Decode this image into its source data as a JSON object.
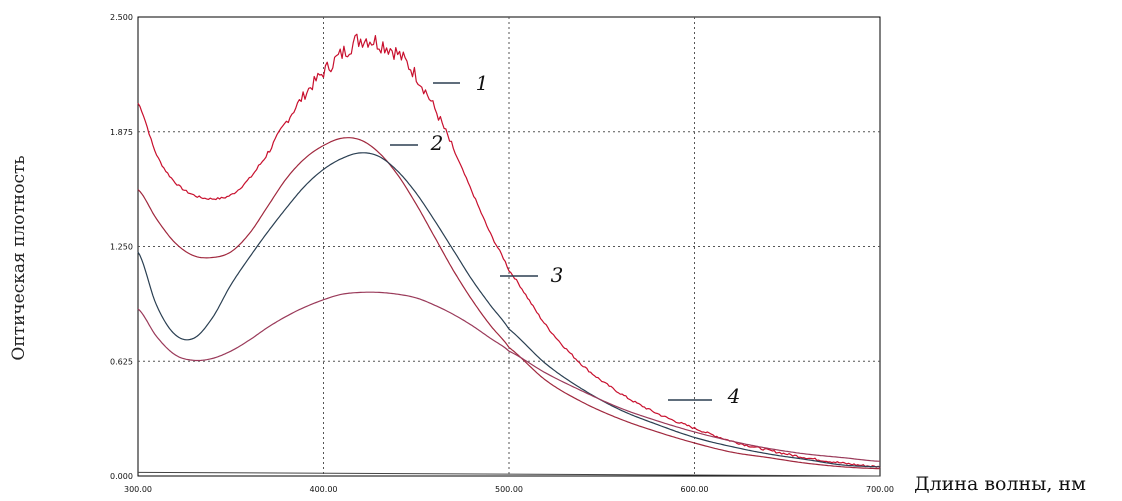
{
  "chart_data": {
    "type": "line",
    "xlabel": "Длина волны, нм",
    "ylabel": "Оптическая плотность",
    "xlim": [
      300,
      700
    ],
    "ylim": [
      0,
      2.5
    ],
    "grid": true,
    "grid_style": "dotted",
    "x_ticks": [
      300,
      400,
      500,
      600,
      700
    ],
    "y_ticks": [
      0,
      0.625,
      1.25,
      1.875,
      2.5
    ],
    "x_tick_labels": [
      "300.00",
      "400.00",
      "500.00",
      "600.00",
      "700.00"
    ],
    "y_tick_labels": [
      "0.000",
      "0.625",
      "1.250",
      "1.875",
      "2.500"
    ],
    "colors": {
      "axes": "#000000",
      "grid": "#555555",
      "curve_red": "#d0102a",
      "curve_dark": "#2c3e50",
      "curve_mixed": "#8b2a4a"
    },
    "series": [
      {
        "name": "1",
        "color": "#c8102e",
        "noise": true,
        "x": [
          300,
          310,
          320,
          330,
          340,
          350,
          360,
          370,
          380,
          390,
          400,
          410,
          420,
          430,
          440,
          450,
          460,
          470,
          480,
          490,
          500,
          520,
          540,
          560,
          580,
          600,
          620,
          640,
          660,
          680,
          700
        ],
        "y": [
          2.03,
          1.75,
          1.6,
          1.53,
          1.51,
          1.53,
          1.62,
          1.76,
          1.93,
          2.08,
          2.2,
          2.3,
          2.38,
          2.36,
          2.3,
          2.18,
          2.0,
          1.78,
          1.55,
          1.32,
          1.12,
          0.82,
          0.6,
          0.45,
          0.34,
          0.26,
          0.19,
          0.14,
          0.1,
          0.07,
          0.05
        ]
      },
      {
        "name": "2",
        "color": "#a0283e",
        "noise": false,
        "x": [
          300,
          310,
          320,
          330,
          340,
          350,
          360,
          370,
          380,
          390,
          400,
          410,
          420,
          430,
          440,
          450,
          460,
          470,
          480,
          490,
          500,
          520,
          540,
          560,
          580,
          600,
          620,
          640,
          660,
          680,
          700
        ],
        "y": [
          1.56,
          1.4,
          1.27,
          1.2,
          1.19,
          1.22,
          1.32,
          1.47,
          1.62,
          1.73,
          1.8,
          1.84,
          1.83,
          1.76,
          1.64,
          1.48,
          1.3,
          1.12,
          0.96,
          0.82,
          0.7,
          0.52,
          0.4,
          0.31,
          0.24,
          0.18,
          0.13,
          0.1,
          0.07,
          0.05,
          0.04
        ]
      },
      {
        "name": "3",
        "color": "#2a3f52",
        "noise": false,
        "x": [
          300,
          310,
          320,
          330,
          340,
          350,
          360,
          370,
          380,
          390,
          400,
          410,
          420,
          430,
          440,
          450,
          460,
          470,
          480,
          490,
          500,
          520,
          540,
          560,
          580,
          600,
          620,
          640,
          660,
          680,
          700
        ],
        "y": [
          1.22,
          0.93,
          0.77,
          0.75,
          0.86,
          1.04,
          1.19,
          1.33,
          1.46,
          1.58,
          1.67,
          1.73,
          1.76,
          1.74,
          1.66,
          1.54,
          1.39,
          1.23,
          1.07,
          0.93,
          0.8,
          0.61,
          0.47,
          0.36,
          0.28,
          0.21,
          0.16,
          0.12,
          0.09,
          0.06,
          0.05
        ]
      },
      {
        "name": "4",
        "color": "#9a3a5a",
        "noise": false,
        "x": [
          300,
          310,
          320,
          330,
          340,
          350,
          360,
          370,
          380,
          390,
          400,
          410,
          420,
          430,
          440,
          450,
          460,
          470,
          480,
          490,
          500,
          520,
          540,
          560,
          580,
          600,
          620,
          640,
          660,
          680,
          700
        ],
        "y": [
          0.91,
          0.76,
          0.66,
          0.63,
          0.64,
          0.68,
          0.74,
          0.81,
          0.87,
          0.92,
          0.96,
          0.99,
          1.0,
          1.0,
          0.99,
          0.97,
          0.93,
          0.88,
          0.82,
          0.75,
          0.68,
          0.56,
          0.46,
          0.37,
          0.3,
          0.24,
          0.19,
          0.15,
          0.12,
          0.1,
          0.08
        ]
      }
    ],
    "annotations": [
      {
        "text": "1",
        "series": "1"
      },
      {
        "text": "2",
        "series": "2"
      },
      {
        "text": "3",
        "series": "3"
      },
      {
        "text": "4",
        "series": "4"
      }
    ]
  }
}
